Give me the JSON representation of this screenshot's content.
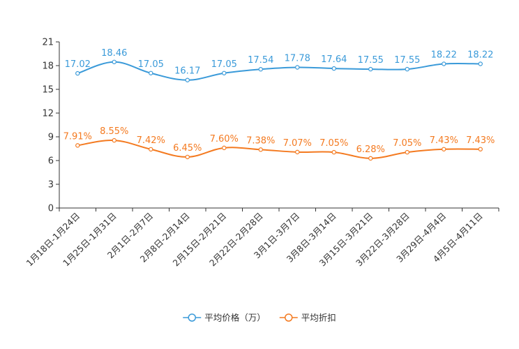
{
  "chart_data": {
    "type": "line",
    "title": "",
    "xlabel": "",
    "ylabel": "",
    "ylim": [
      0,
      21
    ],
    "yticks": [
      0,
      3,
      6,
      9,
      12,
      15,
      18,
      21
    ],
    "grid": false,
    "legend_position": "bottom-center",
    "categories": [
      "1月18日-1月24日",
      "1月25日-1月31日",
      "2月1日-2月7日",
      "2月8日-2月14日",
      "2月15日-2月21日",
      "2月22日-2月28日",
      "3月1日-3月7日",
      "3月8日-3月14日",
      "3月15日-3月21日",
      "3月22日-3月28日",
      "3月29日-4月4日",
      "4月5日-4月11日"
    ],
    "series": [
      {
        "name": "平均价格（万）",
        "color": "#3a9ad9",
        "values": [
          17.02,
          18.46,
          17.05,
          16.17,
          17.05,
          17.54,
          17.78,
          17.64,
          17.55,
          17.55,
          18.22,
          18.22
        ],
        "labels": [
          "17.02",
          "18.46",
          "17.05",
          "16.17",
          "17.05",
          "17.54",
          "17.78",
          "17.64",
          "17.55",
          "17.55",
          "18.22",
          "18.22"
        ]
      },
      {
        "name": "平均折扣",
        "color": "#f47a20",
        "values": [
          7.91,
          8.55,
          7.42,
          6.45,
          7.6,
          7.38,
          7.07,
          7.05,
          6.28,
          7.05,
          7.43,
          7.43
        ],
        "labels": [
          "7.91%",
          "8.55%",
          "7.42%",
          "6.45%",
          "7.60%",
          "7.38%",
          "7.07%",
          "7.05%",
          "6.28%",
          "7.05%",
          "7.43%",
          "7.43%"
        ]
      }
    ]
  }
}
